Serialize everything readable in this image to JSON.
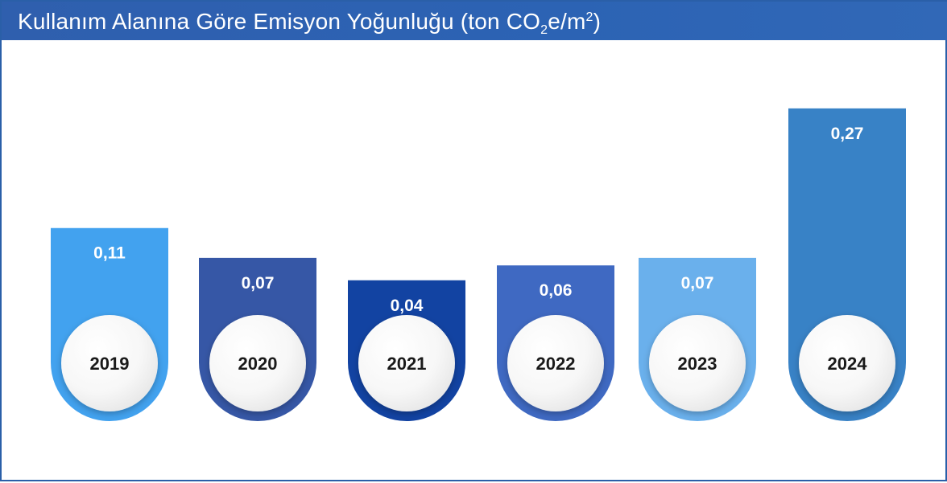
{
  "header": {
    "title_pre": "Kullanım Alanına Göre Emisyon Yoğunluğu (ton CO",
    "title_sub": "2",
    "title_mid": "e/m",
    "title_sup": "2",
    "title_post": ")"
  },
  "chart_data": {
    "type": "bar",
    "categories": [
      "2019",
      "2020",
      "2021",
      "2022",
      "2023",
      "2024"
    ],
    "values": [
      0.11,
      0.07,
      0.04,
      0.06,
      0.07,
      0.27
    ],
    "value_labels": [
      "0,11",
      "0,07",
      "0,04",
      "0,06",
      "0,07",
      "0,27"
    ],
    "colors": [
      "#42a2ef",
      "#3657a6",
      "#1243a2",
      "#3f69c2",
      "#6ab0ec",
      "#3882c6"
    ],
    "legend": "none",
    "grid": false
  }
}
